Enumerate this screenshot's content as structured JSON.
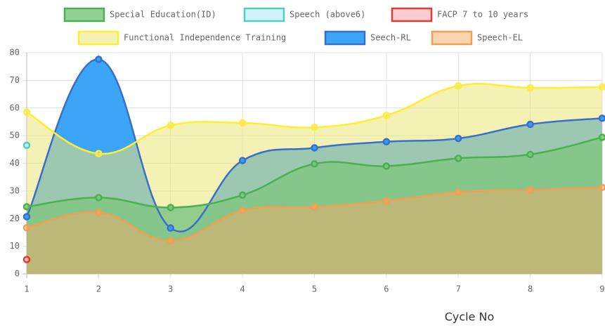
{
  "chart_data": {
    "type": "line",
    "x_label": "Cycle No",
    "categories": [
      1,
      2,
      3,
      4,
      5,
      6,
      7,
      8,
      9
    ],
    "ylim": [
      0,
      80
    ],
    "yticks": [
      0,
      10,
      20,
      30,
      40,
      50,
      60,
      70,
      80
    ],
    "grid": true,
    "series": [
      {
        "name": "Special Education(ID)",
        "color": "#4caf50",
        "fill": "rgba(129,199,132,0.85)",
        "values": [
          24.3,
          27.6,
          24,
          28.5,
          39.8,
          39,
          41.8,
          43.2,
          49.4
        ]
      },
      {
        "name": "Speech (above6)",
        "color": "#4dd0c4",
        "fill": "rgba(178,235,242,0.6)",
        "values": [
          46.5,
          null,
          null,
          null,
          null,
          null,
          null,
          null,
          null
        ]
      },
      {
        "name": "FACP 7 to 10 years",
        "color": "#e53935",
        "fill": "rgba(255,170,180,0.6)",
        "values": [
          5.2,
          null,
          null,
          null,
          null,
          null,
          null,
          null,
          null
        ]
      },
      {
        "name": "Functional Independence Training",
        "color": "#ffee33",
        "fill": "rgba(235,230,120,0.55)",
        "values": [
          58.5,
          43.5,
          53.7,
          54.6,
          53,
          57.3,
          68,
          67.3,
          67.6
        ]
      },
      {
        "name": "Seech-RL",
        "color": "#3a6fc9",
        "fill": "rgba(50,160,245,0.95)",
        "values": [
          20.7,
          77.6,
          16.6,
          41,
          45.6,
          47.8,
          49,
          54.1,
          56.3
        ]
      },
      {
        "name": "Speech-EL",
        "color": "#f0a050",
        "fill": "rgba(244,170,100,0.5)",
        "values": [
          16.7,
          22.3,
          12,
          23,
          24.2,
          26.4,
          29.6,
          30.4,
          31.3
        ]
      }
    ]
  }
}
